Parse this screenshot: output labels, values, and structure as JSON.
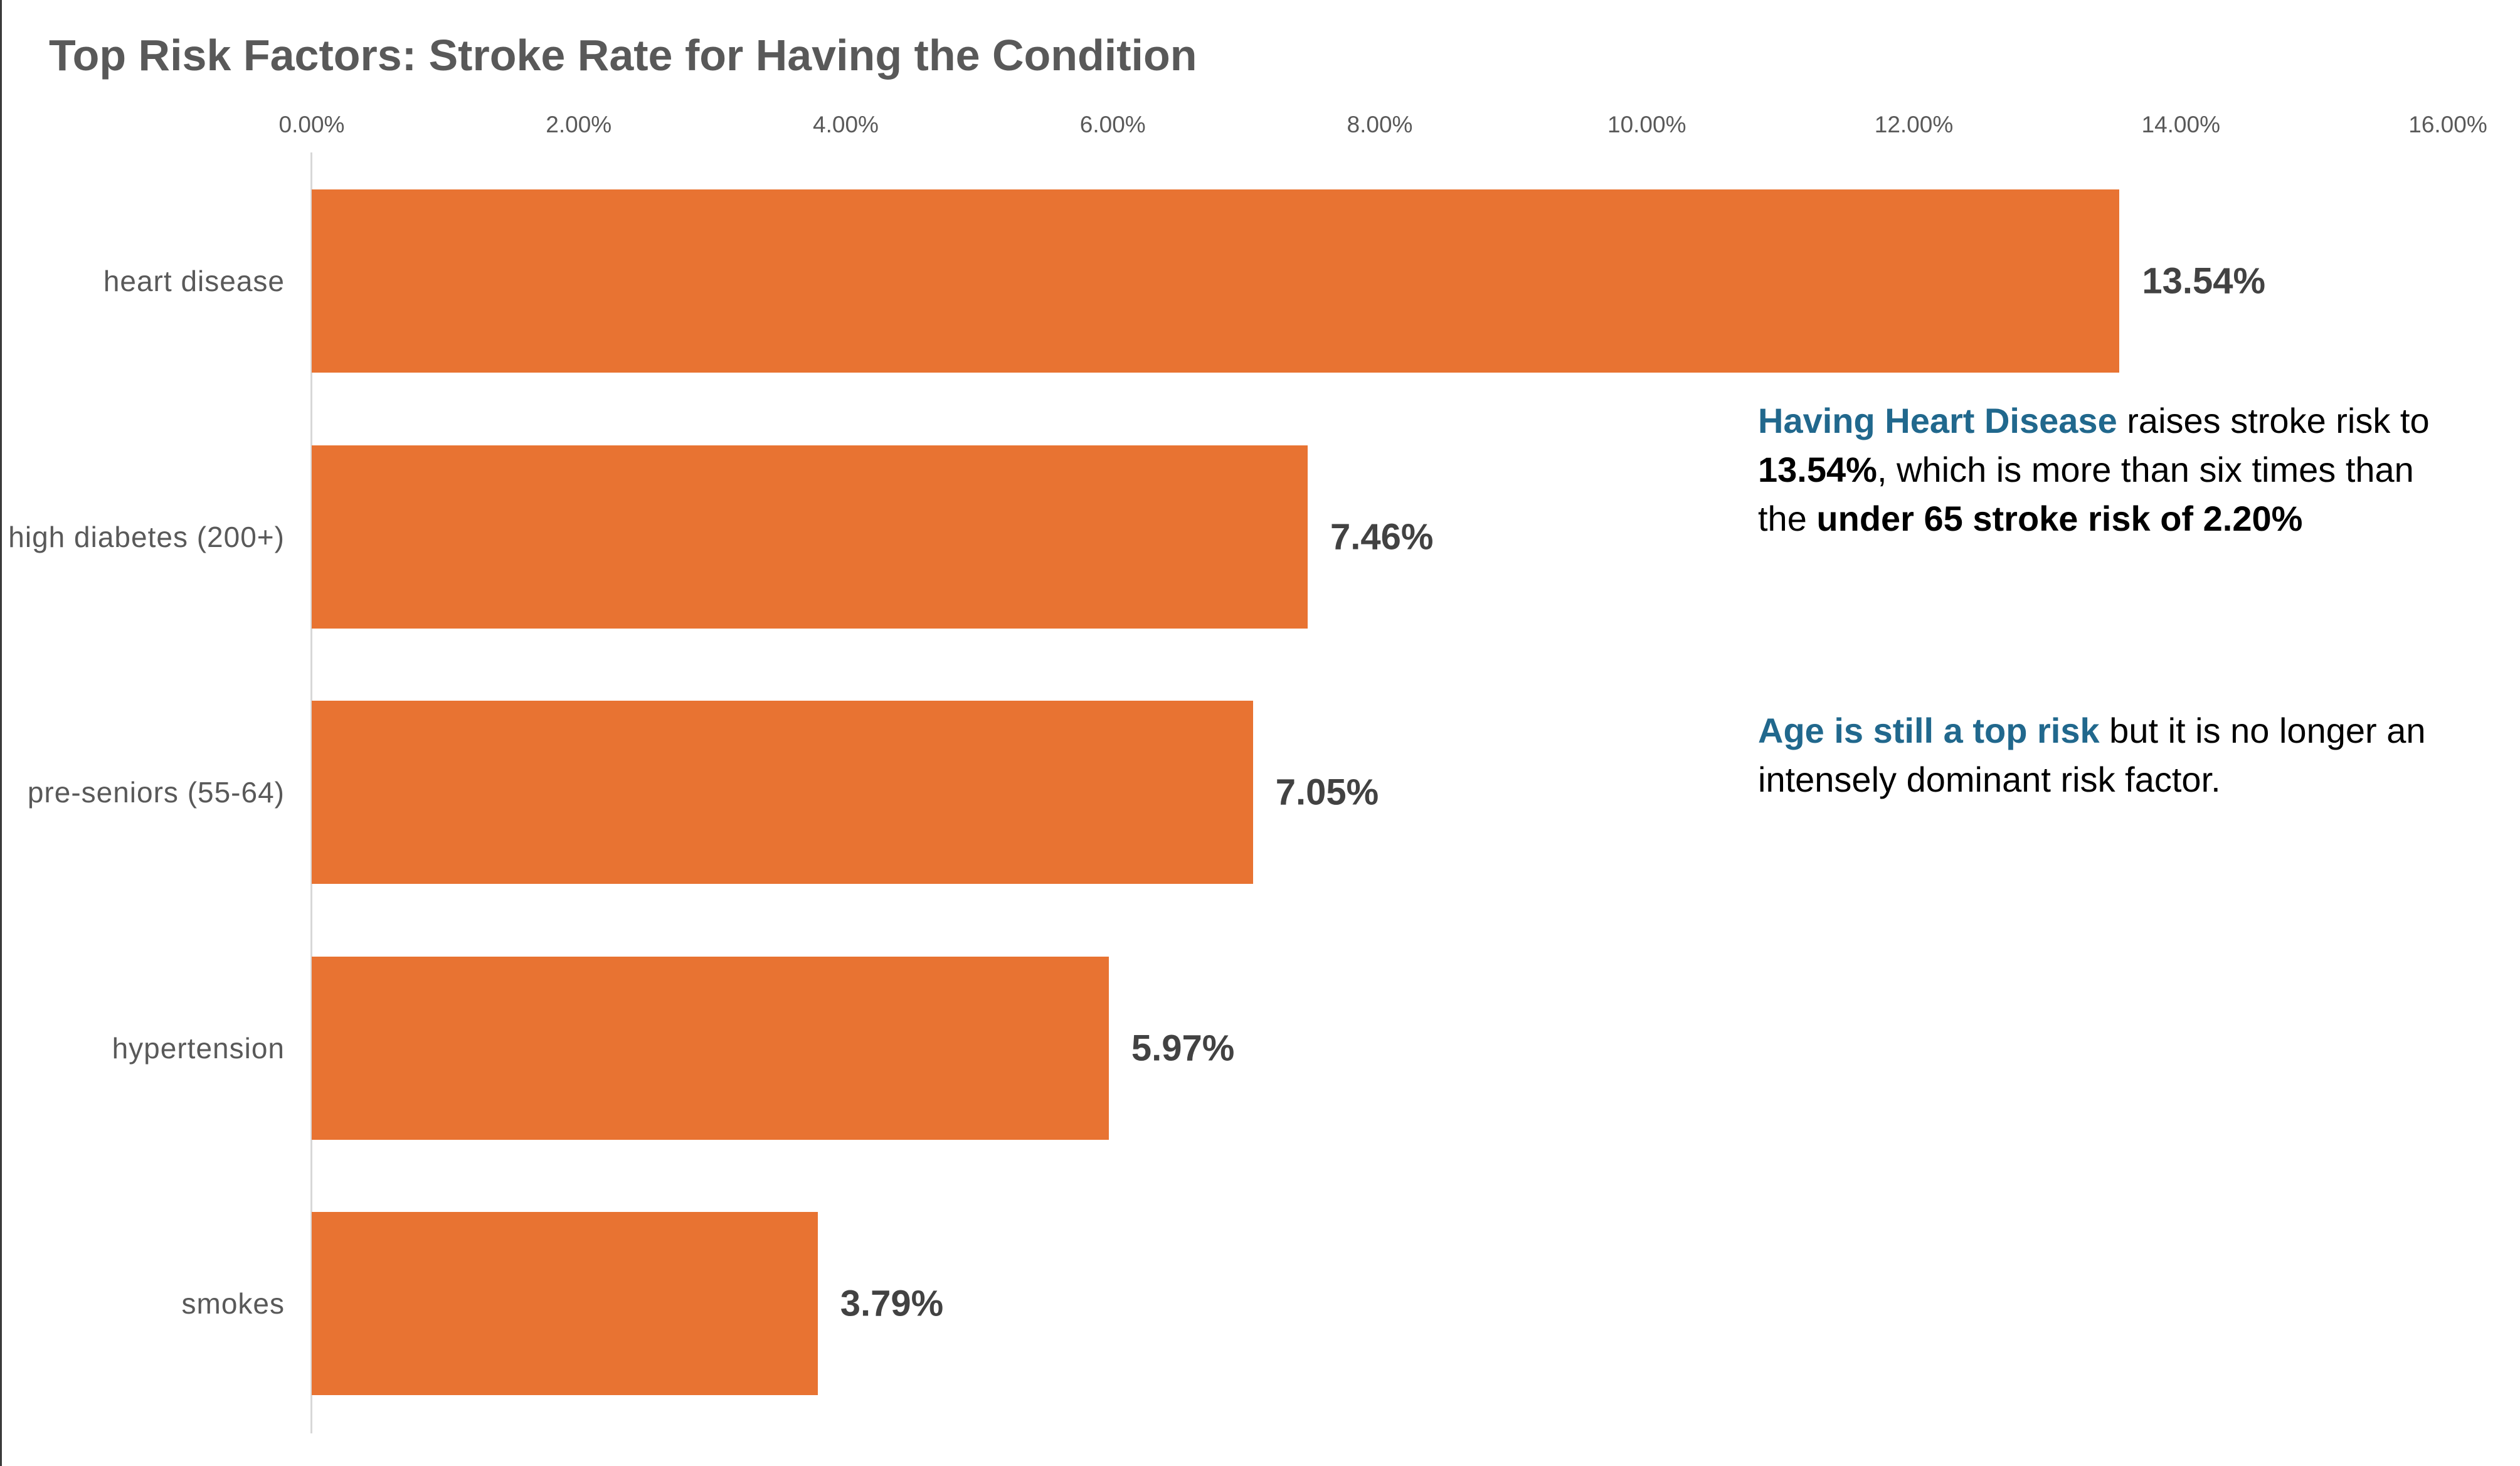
{
  "colors": {
    "bar": "#e87332",
    "accent_blue": "#21688d",
    "title_gray": "#595959",
    "axis_label_gray": "#595959",
    "value_label_gray": "#424242",
    "axis_line_gray": "#d8d8d8"
  },
  "chart_data": {
    "type": "bar",
    "orientation": "horizontal",
    "title": "Top Risk Factors: Stroke Rate for Having the Condition",
    "categories": [
      "heart disease",
      "high diabetes (200+)",
      "pre-seniors (55-64)",
      "hypertension",
      "smokes"
    ],
    "values": [
      13.54,
      7.46,
      7.05,
      5.97,
      3.79
    ],
    "value_labels": [
      "13.54%",
      "7.46%",
      "7.05%",
      "5.97%",
      "3.79%"
    ],
    "xlabel": "",
    "ylabel": "",
    "xlim": [
      0,
      16
    ],
    "x_ticks": [
      "0.00%",
      "2.00%",
      "4.00%",
      "6.00%",
      "8.00%",
      "10.00%",
      "12.00%",
      "14.00%",
      "16.00%"
    ],
    "grid": false,
    "legend": "none",
    "bar_color": "#e87332"
  },
  "annotations": {
    "note1": {
      "segments": [
        {
          "text": "Having Heart Disease",
          "style": "blue-bold"
        },
        {
          "text": " raises stroke risk to ",
          "style": "normal"
        },
        {
          "text": "13.54%",
          "style": "bold"
        },
        {
          "text": ", which is more than six times than the ",
          "style": "normal"
        },
        {
          "text": "under 65 stroke risk of 2.20%",
          "style": "bold"
        }
      ]
    },
    "note2": {
      "segments": [
        {
          "text": "Age is still a top risk",
          "style": "blue-bold"
        },
        {
          "text": " but it is no longer an intensely dominant risk factor.",
          "style": "normal"
        }
      ]
    }
  }
}
